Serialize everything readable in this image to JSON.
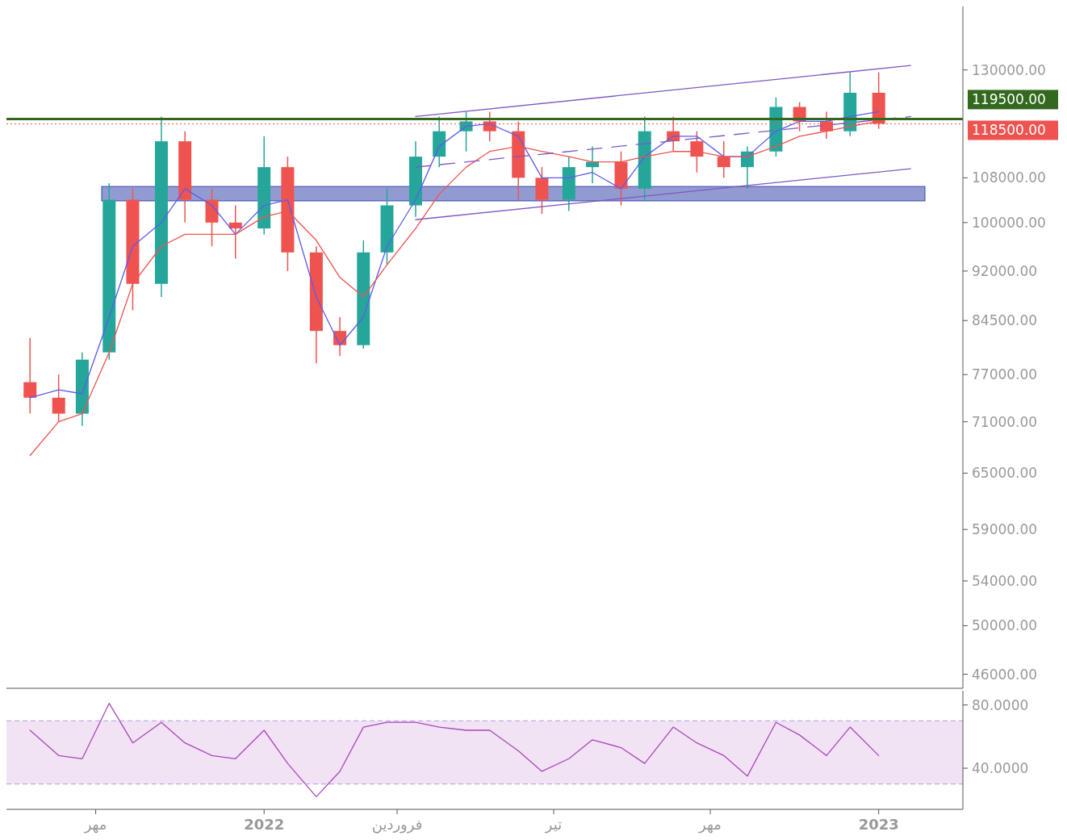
{
  "chart_data": [
    {
      "type": "candlestick",
      "log": true,
      "tick_labels": "y",
      "xlim": [
        "2021-08-01",
        "2023-02-20"
      ],
      "ylim": [
        44900,
        145000
      ],
      "yticks": [
        {
          "value": 130000,
          "label": "130000.00"
        },
        {
          "value": 108000,
          "label": "108000.00"
        },
        {
          "value": 100000,
          "label": "100000.00"
        },
        {
          "value": 92000,
          "label": "92000.00"
        },
        {
          "value": 84500,
          "label": "84500.00"
        },
        {
          "value": 77000,
          "label": "77000.00"
        },
        {
          "value": 71000,
          "label": "71000.00"
        },
        {
          "value": 65000,
          "label": "65000.00"
        },
        {
          "value": 59000,
          "label": "59000.00"
        },
        {
          "value": 54000,
          "label": "54000.00"
        },
        {
          "value": 50000,
          "label": "50000.00"
        },
        {
          "value": 46000,
          "label": "46000.00"
        }
      ],
      "x": [
        "2021-08-15",
        "2021-09-01",
        "2021-09-15",
        "2021-10-01",
        "2021-10-15",
        "2021-11-01",
        "2021-11-15",
        "2021-12-01",
        "2021-12-15",
        "2022-01-01",
        "2022-01-15",
        "2022-02-01",
        "2022-02-15",
        "2022-03-01",
        "2022-03-15",
        "2022-04-01",
        "2022-04-15",
        "2022-05-01",
        "2022-05-15",
        "2022-06-01",
        "2022-06-15",
        "2022-07-01",
        "2022-07-15",
        "2022-08-01",
        "2022-08-15",
        "2022-09-01",
        "2022-09-15",
        "2022-10-01",
        "2022-10-15",
        "2022-11-01",
        "2022-11-15",
        "2022-12-01",
        "2022-12-15",
        "2023-01-01"
      ],
      "ohlc": [
        [
          76000,
          82000,
          72000,
          74000
        ],
        [
          74000,
          77000,
          71000,
          72000
        ],
        [
          72000,
          80000,
          70500,
          79000
        ],
        [
          80000,
          107000,
          79000,
          104000
        ],
        [
          104000,
          106000,
          86000,
          90000
        ],
        [
          90000,
          120000,
          88000,
          115000
        ],
        [
          115000,
          117000,
          100000,
          104000
        ],
        [
          104000,
          106000,
          96000,
          100000
        ],
        [
          100000,
          103000,
          94000,
          99000
        ],
        [
          99000,
          116000,
          98000,
          110000
        ],
        [
          110000,
          112000,
          92000,
          95000
        ],
        [
          95000,
          96000,
          78500,
          83000
        ],
        [
          83000,
          85000,
          79500,
          81000
        ],
        [
          81000,
          97000,
          80500,
          95000
        ],
        [
          95000,
          106000,
          93000,
          103000
        ],
        [
          103000,
          115000,
          101000,
          112000
        ],
        [
          112000,
          120000,
          110000,
          117000
        ],
        [
          117000,
          121000,
          113000,
          119000
        ],
        [
          119000,
          121000,
          115000,
          117000
        ],
        [
          117000,
          119000,
          104000,
          108000
        ],
        [
          108000,
          110000,
          101500,
          104000
        ],
        [
          104000,
          112000,
          102000,
          110000
        ],
        [
          110000,
          114000,
          107000,
          111000
        ],
        [
          111000,
          113000,
          103000,
          106000
        ],
        [
          106000,
          120000,
          104000,
          117000
        ],
        [
          117000,
          120000,
          113000,
          115000
        ],
        [
          115000,
          117000,
          109000,
          112000
        ],
        [
          112000,
          115000,
          108000,
          110000
        ],
        [
          110000,
          114000,
          106000,
          113000
        ],
        [
          113000,
          124000,
          112000,
          122000
        ],
        [
          122000,
          123000,
          117000,
          119000
        ],
        [
          119000,
          121000,
          115500,
          117000
        ],
        [
          117000,
          129500,
          116000,
          125000
        ],
        [
          125000,
          129500,
          117500,
          118500
        ]
      ],
      "colors": [
        "#ef5350",
        "#ef5350",
        "#26a69a",
        "#26a69a",
        "#ef5350",
        "#26a69a",
        "#ef5350",
        "#ef5350",
        "#ef5350",
        "#26a69a",
        "#ef5350",
        "#ef5350",
        "#ef5350",
        "#26a69a",
        "#26a69a",
        "#26a69a",
        "#26a69a",
        "#26a69a",
        "#ef5350",
        "#ef5350",
        "#ef5350",
        "#26a69a",
        "#26a69a",
        "#ef5350",
        "#26a69a",
        "#ef5350",
        "#ef5350",
        "#ef5350",
        "#26a69a",
        "#26a69a",
        "#ef5350",
        "#ef5350",
        "#26a69a",
        "#ef5350"
      ],
      "series": [
        {
          "type": "line",
          "color": "#5b5bf0",
          "x": [
            "2021-08-15",
            "2021-09-01",
            "2021-09-15",
            "2021-10-01",
            "2021-10-15",
            "2021-11-01",
            "2021-11-15",
            "2021-12-01",
            "2021-12-15",
            "2022-01-01",
            "2022-01-15",
            "2022-02-01",
            "2022-02-15",
            "2022-03-01",
            "2022-03-15",
            "2022-04-01",
            "2022-04-15",
            "2022-05-01",
            "2022-05-15",
            "2022-06-01",
            "2022-06-15",
            "2022-07-01",
            "2022-07-15",
            "2022-08-01",
            "2022-08-15",
            "2022-09-01",
            "2022-09-15",
            "2022-10-01",
            "2022-10-15",
            "2022-11-01",
            "2022-11-15",
            "2022-12-01",
            "2022-12-15",
            "2023-01-01"
          ],
          "values": [
            74000,
            75000,
            74500,
            85000,
            96000,
            100000,
            106000,
            103000,
            98000,
            103000,
            104000,
            88000,
            81000,
            85000,
            96000,
            104000,
            114000,
            118000,
            118500,
            116000,
            108000,
            108000,
            109000,
            106000,
            112000,
            116000,
            116000,
            112000,
            112000,
            117000,
            119000,
            119000,
            120000,
            121000
          ]
        },
        {
          "type": "line",
          "color": "#ef5350",
          "x": [
            "2021-08-15",
            "2021-09-01",
            "2021-09-15",
            "2021-10-01",
            "2021-10-15",
            "2021-11-01",
            "2021-11-15",
            "2021-12-01",
            "2021-12-15",
            "2022-01-01",
            "2022-01-15",
            "2022-02-01",
            "2022-02-15",
            "2022-03-01",
            "2022-03-15",
            "2022-04-01",
            "2022-04-15",
            "2022-05-01",
            "2022-05-15",
            "2022-06-01",
            "2022-06-15",
            "2022-07-01",
            "2022-07-15",
            "2022-08-01",
            "2022-08-15",
            "2022-09-01",
            "2022-09-15",
            "2022-10-01",
            "2022-10-15",
            "2022-11-01",
            "2022-11-15",
            "2022-12-01",
            "2022-12-15",
            "2023-01-01"
          ],
          "values": [
            67000,
            71000,
            72000,
            80000,
            90000,
            96000,
            98000,
            98000,
            98000,
            101000,
            102000,
            97000,
            91000,
            88000,
            93000,
            99000,
            105000,
            110000,
            113000,
            114000,
            113000,
            112000,
            111000,
            111000,
            112000,
            113000,
            113000,
            112000,
            112000,
            114000,
            116000,
            117000,
            118000,
            119000
          ]
        },
        {
          "type": "line",
          "color": "#7e57c2",
          "x": [
            "2022-04-01",
            "2023-01-20"
          ],
          "values": [
            120000,
            131000
          ]
        },
        {
          "type": "line",
          "color": "#7e57c2",
          "line_style": "dashed",
          "x": [
            "2022-04-01",
            "2023-01-20"
          ],
          "values": [
            110000,
            120000
          ]
        },
        {
          "type": "line",
          "color": "#7e57c2",
          "x": [
            "2022-04-01",
            "2023-01-20"
          ],
          "values": [
            100500,
            109700
          ]
        }
      ],
      "bands": [
        {
          "axis": "y",
          "from": 103800,
          "to": 106400,
          "color": "#3949ab"
        }
      ],
      "ref_lines": [
        {
          "axis": "y",
          "value": 119500,
          "label": "119500.00",
          "color": "#33691e",
          "line_style": "solid"
        },
        {
          "axis": "y",
          "value": 118500,
          "label": "118500.00",
          "color": "#ef5350",
          "line_style": "dotted"
        }
      ]
    },
    {
      "type": "line",
      "xlim": [
        "2021-08-01",
        "2023-02-20"
      ],
      "xticks": [
        {
          "value": "2021-09-23",
          "label": "مهر"
        },
        {
          "value": "2022-01-01",
          "label": "2022"
        },
        {
          "value": "2022-03-21",
          "label": "فروردین"
        },
        {
          "value": "2022-06-22",
          "label": "تیر"
        },
        {
          "value": "2022-09-23",
          "label": "مهر"
        },
        {
          "value": "2023-01-01",
          "label": "2023"
        }
      ],
      "ylim": [
        14,
        89
      ],
      "yticks": [
        {
          "value": 80,
          "label": "80.0000"
        },
        {
          "value": 40,
          "label": "40.0000"
        }
      ],
      "series": [
        {
          "color": "#ab47bc",
          "x": [
            "2021-08-15",
            "2021-09-01",
            "2021-09-15",
            "2021-10-01",
            "2021-10-15",
            "2021-11-01",
            "2021-11-15",
            "2021-12-01",
            "2021-12-15",
            "2022-01-01",
            "2022-01-15",
            "2022-02-01",
            "2022-02-15",
            "2022-03-01",
            "2022-03-15",
            "2022-04-01",
            "2022-04-15",
            "2022-05-01",
            "2022-05-15",
            "2022-06-01",
            "2022-06-15",
            "2022-07-01",
            "2022-07-15",
            "2022-08-01",
            "2022-08-15",
            "2022-09-01",
            "2022-09-15",
            "2022-10-01",
            "2022-10-15",
            "2022-11-01",
            "2022-11-15",
            "2022-12-01",
            "2022-12-15",
            "2023-01-01"
          ],
          "values": [
            64,
            48,
            46,
            81,
            56,
            69,
            56,
            48,
            46,
            64,
            43,
            22,
            38,
            66,
            69,
            69,
            66,
            64,
            64,
            51,
            38,
            46,
            58,
            53,
            43,
            66,
            56,
            48,
            35,
            69,
            61,
            48,
            66,
            48
          ]
        }
      ],
      "bands": [
        {
          "axis": "y",
          "from": 30,
          "to": 70,
          "color": "#e1bee7"
        }
      ],
      "ref_lines": [
        {
          "axis": "y",
          "value": 70,
          "color": "#b39ddb",
          "line_style": "dashed"
        },
        {
          "axis": "y",
          "value": 30,
          "color": "#b39ddb",
          "line_style": "dashed"
        }
      ]
    }
  ]
}
